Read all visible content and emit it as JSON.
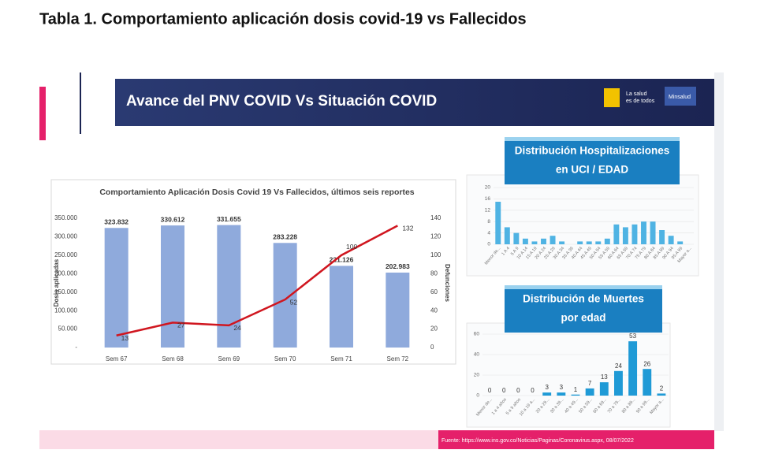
{
  "title": "Tabla 1. Comportamiento aplicación dosis covid-19 vs Fallecidos",
  "banner": {
    "title": "Avance del PNV COVID Vs Situación COVID",
    "logo_lines": [
      "La salud",
      "es de todos"
    ],
    "brand": "Minsalud"
  },
  "source": "Fuente: https://www.ins.gov.co/Noticias/Paginas/Coronavirus.aspx, 08/07/2022",
  "chart_data": [
    {
      "type": "bar",
      "title": "Comportamiento Aplicación Dosis Covid 19 Vs Fallecidos, últimos seis reportes",
      "categories": [
        "Sem 67",
        "Sem 68",
        "Sem 69",
        "Sem 70",
        "Sem 71",
        "Sem 72"
      ],
      "ylabel": "Dosis aplicadas",
      "y2label": "Defunciones",
      "series": [
        {
          "type": "bar",
          "color": "#8faadc",
          "values": [
            323832,
            330612,
            331655,
            283228,
            221126,
            202983
          ],
          "value_labels": [
            "323.832",
            "330.612",
            "331.655",
            "283.228",
            "221.126",
            "202.983"
          ]
        },
        {
          "type": "line",
          "axis": "y2",
          "color": "#d0161f",
          "values": [
            13,
            27,
            24,
            52,
            100,
            132
          ]
        }
      ],
      "ylim": [
        0,
        350000
      ],
      "yticks": [
        {
          "value": 0,
          "label": "-"
        },
        {
          "value": 50000,
          "label": "50.000"
        },
        {
          "value": 100000,
          "label": "100.000"
        },
        {
          "value": 150000,
          "label": "150.000"
        },
        {
          "value": 200000,
          "label": "200.000"
        },
        {
          "value": 250000,
          "label": "250.000"
        },
        {
          "value": 300000,
          "label": "300.000"
        },
        {
          "value": 350000,
          "label": "350.000"
        }
      ],
      "y2lim": [
        0,
        140
      ],
      "y2ticks": [
        0,
        20,
        40,
        60,
        80,
        100,
        120,
        140
      ]
    },
    {
      "type": "bar",
      "title": [
        "Distribución Hospitalizaciones",
        "en UCI / EDAD"
      ],
      "categories": [
        "Menor de...",
        "1 A 4",
        "5 A 9",
        "10 A 14",
        "15 A 19",
        "20 A 24",
        "25 A 29",
        "30 A 34",
        "35 A 39",
        "40 A 44",
        "45 A 49",
        "50 A 54",
        "55 A 59",
        "60 A 64",
        "65 A 69",
        "70 A 74",
        "75 A 79",
        "80 A 84",
        "85 A 89",
        "90 A 94",
        "95 A 99",
        "Mayor a..."
      ],
      "values": [
        15,
        6,
        4,
        2,
        1,
        2,
        3,
        1,
        0,
        1,
        1,
        1,
        2,
        7,
        6,
        7,
        8,
        8,
        5,
        3,
        1,
        0
      ],
      "color": "#4fb3e3",
      "ylim": [
        0,
        20
      ],
      "yticks": [
        0,
        4,
        8,
        12,
        16,
        20
      ]
    },
    {
      "type": "bar",
      "title": [
        "Distribución de Muertes",
        "por edad"
      ],
      "categories": [
        "Menor de...",
        "1 a 4 años",
        "5 a 9 años",
        "10 a 19 a...",
        "20 a 29...",
        "30 a 39...",
        "40 a 49...",
        "50 a 59...",
        "60 a 69...",
        "70 a 79...",
        "80 a 89...",
        "90 a 99...",
        "Mayor a..."
      ],
      "values": [
        0,
        0,
        0,
        0,
        3,
        3,
        1,
        7,
        13,
        24,
        53,
        26,
        2
      ],
      "color": "#1f9ad6",
      "ylim": [
        0,
        60
      ],
      "yticks": [
        0,
        20,
        40,
        60
      ]
    }
  ]
}
